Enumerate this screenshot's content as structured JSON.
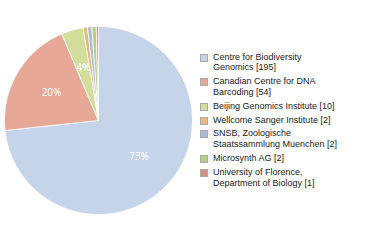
{
  "chart_data": {
    "type": "pie",
    "categories": [
      "Centre for Biodiversity\nGenomics [195]",
      "Canadian Centre for DNA\nBarcoding [54]",
      "Beijing Genomics Institute [10]",
      "Wellcome Sanger Institute [2]",
      "SNSB, Zoologische\nStaatssammlung Muenchen [2]",
      "Microsynth AG [2]",
      "University of Florence,\nDepartment of Biology [1]"
    ],
    "values": [
      195,
      54,
      10,
      2,
      2,
      2,
      1
    ],
    "colors": [
      "#c5d4e8",
      "#e8a898",
      "#d4de9c",
      "#e8b87c",
      "#a8bcd8",
      "#b8cc88",
      "#d49080"
    ],
    "data_labels": true,
    "value_labels": [
      "73%",
      "20%",
      "4%",
      null,
      null,
      null,
      null
    ],
    "legend": "right"
  }
}
